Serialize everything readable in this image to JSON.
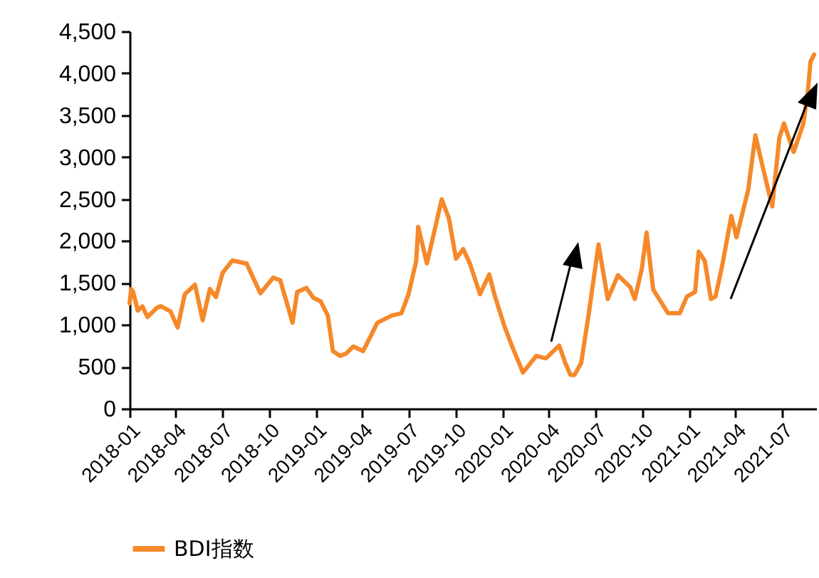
{
  "chart_data": {
    "type": "line",
    "legend": "bottom",
    "xlim": [
      "2018-01-01",
      "2021-09-06"
    ],
    "xticks": [
      "2018-01",
      "2018-04",
      "2018-07",
      "2018-10",
      "2019-01",
      "2019-04",
      "2019-07",
      "2019-10",
      "2020-01",
      "2020-04",
      "2020-07",
      "2020-10",
      "2021-01",
      "2021-04",
      "2021-07"
    ],
    "ylim": [
      0,
      4500
    ],
    "yticks": [
      0,
      500,
      {
        "value": 1000,
        "label": "1,000"
      },
      {
        "value": 1500,
        "label": "1,500"
      },
      {
        "value": 2000,
        "label": "2,000"
      },
      {
        "value": 2500,
        "label": "2,500"
      },
      {
        "value": 3000,
        "label": "3,000"
      },
      {
        "value": 3500,
        "label": "3,500"
      },
      {
        "value": 4000,
        "label": "4,000"
      },
      {
        "value": 4500,
        "label": "4,500"
      }
    ],
    "x": [
      "2018-01-01",
      "2018-01-04",
      "2018-01-08",
      "2018-01-17",
      "2018-01-26",
      "2018-02-05",
      "2018-02-23",
      "2018-03-03",
      "2018-03-22",
      "2018-04-05",
      "2018-04-19",
      "2018-05-09",
      "2018-05-24",
      "2018-06-07",
      "2018-06-19",
      "2018-07-02",
      "2018-07-21",
      "2018-08-18",
      "2018-09-14",
      "2018-10-09",
      "2018-10-23",
      "2018-11-16",
      "2018-11-25",
      "2018-12-13",
      "2018-12-27",
      "2019-01-10",
      "2019-01-24",
      "2019-02-03",
      "2019-02-17",
      "2019-03-01",
      "2019-03-15",
      "2019-04-03",
      "2019-05-01",
      "2019-05-29",
      "2019-06-17",
      "2019-07-01",
      "2019-07-16",
      "2019-07-20",
      "2019-08-06",
      "2019-08-20",
      "2019-09-04",
      "2019-09-18",
      "2019-10-02",
      "2019-10-16",
      "2019-10-29",
      "2019-11-18",
      "2019-12-06",
      "2019-12-16",
      "2020-01-04",
      "2020-01-18",
      "2020-02-10",
      "2020-03-07",
      "2020-03-26",
      "2020-04-21",
      "2020-05-03",
      "2020-05-13",
      "2020-05-21",
      "2020-06-03",
      "2020-06-18",
      "2020-07-07",
      "2020-07-25",
      "2020-08-14",
      "2020-09-07",
      "2020-09-16",
      "2020-09-30",
      "2020-10-09",
      "2020-10-22",
      "2020-11-20",
      "2020-12-13",
      "2020-12-27",
      "2021-01-12",
      "2021-01-19",
      "2021-01-31",
      "2021-02-12",
      "2021-02-21",
      "2021-03-06",
      "2021-03-24",
      "2021-04-03",
      "2021-04-26",
      "2021-05-10",
      "2021-05-24",
      "2021-06-12",
      "2021-06-26",
      "2021-07-05",
      "2021-07-24",
      "2021-08-12",
      "2021-08-21",
      "2021-08-26",
      "2021-09-02"
    ],
    "series": [
      {
        "name": "BDI指数",
        "color": "#f5892a",
        "values": [
          1256,
          1426,
          1390,
          1170,
          1220,
          1092,
          1200,
          1222,
          1160,
          968,
          1364,
          1477,
          1053,
          1426,
          1330,
          1618,
          1766,
          1730,
          1375,
          1562,
          1530,
          1024,
          1390,
          1440,
          1320,
          1280,
          1110,
          685,
          628,
          657,
          741,
          685,
          1024,
          1109,
          1137,
          1364,
          1760,
          2168,
          1732,
          2100,
          2496,
          2270,
          1788,
          1902,
          1732,
          1364,
          1601,
          1364,
          996,
          770,
          430,
          628,
          600,
          752,
          543,
          402,
          402,
          543,
          1138,
          1958,
          1307,
          1591,
          1449,
          1307,
          1676,
          2100,
          1420,
          1138,
          1138,
          1336,
          1392,
          1873,
          1760,
          1307,
          1336,
          1703,
          2298,
          2043,
          2610,
          3260,
          2892,
          2411,
          3231,
          3401,
          3061,
          3401,
          3798,
          4138,
          4223
        ]
      }
    ]
  }
}
